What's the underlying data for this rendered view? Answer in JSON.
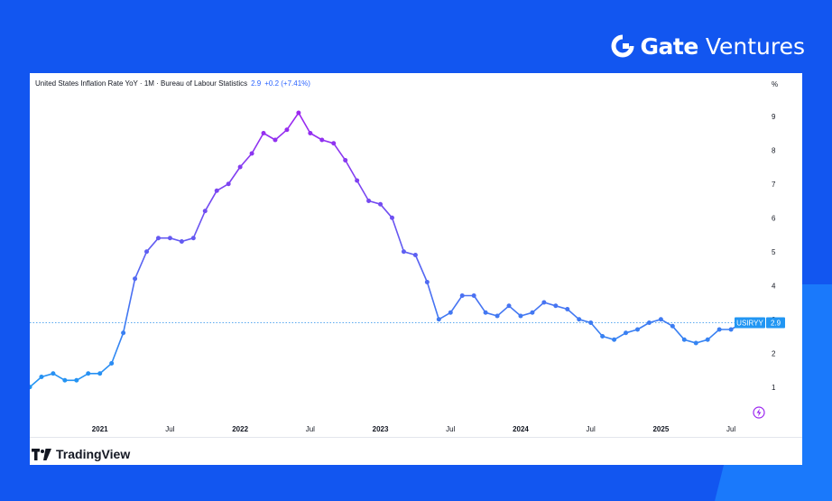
{
  "brand": {
    "name_bold": "Gate",
    "name_light": "Ventures"
  },
  "colors": {
    "background": "#1256f0",
    "line_start": "#2196f3",
    "line_peak": "#9c27f0",
    "price_tag": "#2196f3"
  },
  "chart_data": {
    "type": "line",
    "title": "United States Inflation Rate YoY · 1M · Bureau of Labour Statistics",
    "last_value": "2.9",
    "change": "+0.2 (+7.41%)",
    "ylabel": "%",
    "ylim": [
      0.3,
      9.9
    ],
    "yticks": [
      1,
      2,
      3,
      4,
      5,
      6,
      7,
      8,
      9
    ],
    "xlim": [
      "2020-07",
      "2025-09"
    ],
    "xticks": [
      {
        "label": "2021",
        "date": "2021-01",
        "bold": true
      },
      {
        "label": "Jul",
        "date": "2021-07",
        "bold": false
      },
      {
        "label": "2022",
        "date": "2022-01",
        "bold": true
      },
      {
        "label": "Jul",
        "date": "2022-07",
        "bold": false
      },
      {
        "label": "2023",
        "date": "2023-01",
        "bold": true
      },
      {
        "label": "Jul",
        "date": "2023-07",
        "bold": false
      },
      {
        "label": "2024",
        "date": "2024-01",
        "bold": true
      },
      {
        "label": "Jul",
        "date": "2024-07",
        "bold": false
      },
      {
        "label": "2025",
        "date": "2025-01",
        "bold": true
      },
      {
        "label": "Jul",
        "date": "2025-07",
        "bold": false
      }
    ],
    "series": [
      {
        "name": "USIRYY",
        "x": [
          "2020-07",
          "2020-08",
          "2020-09",
          "2020-10",
          "2020-11",
          "2020-12",
          "2021-01",
          "2021-02",
          "2021-03",
          "2021-04",
          "2021-05",
          "2021-06",
          "2021-07",
          "2021-08",
          "2021-09",
          "2021-10",
          "2021-11",
          "2021-12",
          "2022-01",
          "2022-02",
          "2022-03",
          "2022-04",
          "2022-05",
          "2022-06",
          "2022-07",
          "2022-08",
          "2022-09",
          "2022-10",
          "2022-11",
          "2022-12",
          "2023-01",
          "2023-02",
          "2023-03",
          "2023-04",
          "2023-05",
          "2023-06",
          "2023-07",
          "2023-08",
          "2023-09",
          "2023-10",
          "2023-11",
          "2023-12",
          "2024-01",
          "2024-02",
          "2024-03",
          "2024-04",
          "2024-05",
          "2024-06",
          "2024-07",
          "2024-08",
          "2024-09",
          "2024-10",
          "2024-11",
          "2024-12",
          "2025-01",
          "2025-02",
          "2025-03",
          "2025-04",
          "2025-05",
          "2025-06",
          "2025-07",
          "2025-08"
        ],
        "values": [
          1.0,
          1.3,
          1.4,
          1.2,
          1.2,
          1.4,
          1.4,
          1.7,
          2.6,
          4.2,
          5.0,
          5.4,
          5.4,
          5.3,
          5.4,
          6.2,
          6.8,
          7.0,
          7.5,
          7.9,
          8.5,
          8.3,
          8.6,
          9.1,
          8.5,
          8.3,
          8.2,
          7.7,
          7.1,
          6.5,
          6.4,
          6.0,
          5.0,
          4.9,
          4.1,
          3.0,
          3.2,
          3.7,
          3.7,
          3.2,
          3.1,
          3.4,
          3.1,
          3.2,
          3.5,
          3.4,
          3.3,
          3.0,
          2.9,
          2.5,
          2.4,
          2.6,
          2.7,
          2.9,
          3.0,
          2.8,
          2.4,
          2.3,
          2.4,
          2.7,
          2.7,
          2.9
        ]
      }
    ],
    "last_label": "USIRYY",
    "price_label": "2.9"
  },
  "footer": {
    "tradingview_label": "TradingView"
  }
}
